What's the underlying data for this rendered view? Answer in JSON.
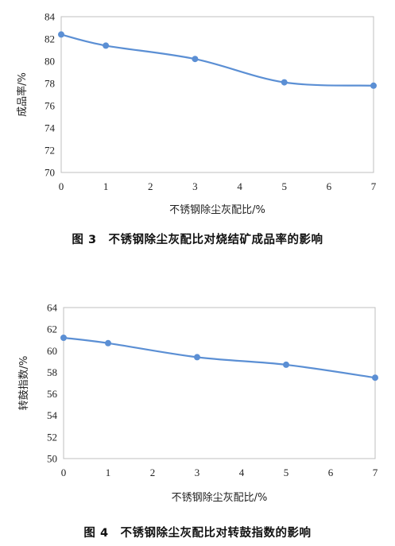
{
  "charts": [
    {
      "caption": "图 3　不锈钢除尘灰配比对烧结矿成品率的影响",
      "chart_data": {
        "type": "line",
        "xlabel": "不锈钢除尘灰配比/%",
        "ylabel": "成品率/%",
        "xlim": [
          0,
          7
        ],
        "ylim": [
          70,
          84
        ],
        "xticks": [
          0,
          1,
          2,
          3,
          4,
          5,
          6,
          7
        ],
        "yticks": [
          70,
          72,
          74,
          76,
          78,
          80,
          82,
          84
        ],
        "x": [
          0,
          1,
          3,
          5,
          7
        ],
        "y": [
          82.4,
          81.4,
          80.2,
          78.1,
          77.8
        ],
        "color": "#5b8fd4",
        "grid": false
      }
    },
    {
      "caption": "图 4　不锈钢除尘灰配比对转鼓指数的影响",
      "chart_data": {
        "type": "line",
        "xlabel": "不锈钢除尘灰配比/%",
        "ylabel": "转鼓指数/%",
        "xlim": [
          0,
          7
        ],
        "ylim": [
          50,
          64
        ],
        "xticks": [
          0,
          1,
          2,
          3,
          4,
          5,
          6,
          7
        ],
        "yticks": [
          50,
          52,
          54,
          56,
          58,
          60,
          62,
          64
        ],
        "x": [
          0,
          1,
          3,
          5,
          7
        ],
        "y": [
          61.2,
          60.7,
          59.4,
          58.7,
          57.5
        ],
        "color": "#5b8fd4",
        "grid": false
      }
    }
  ]
}
